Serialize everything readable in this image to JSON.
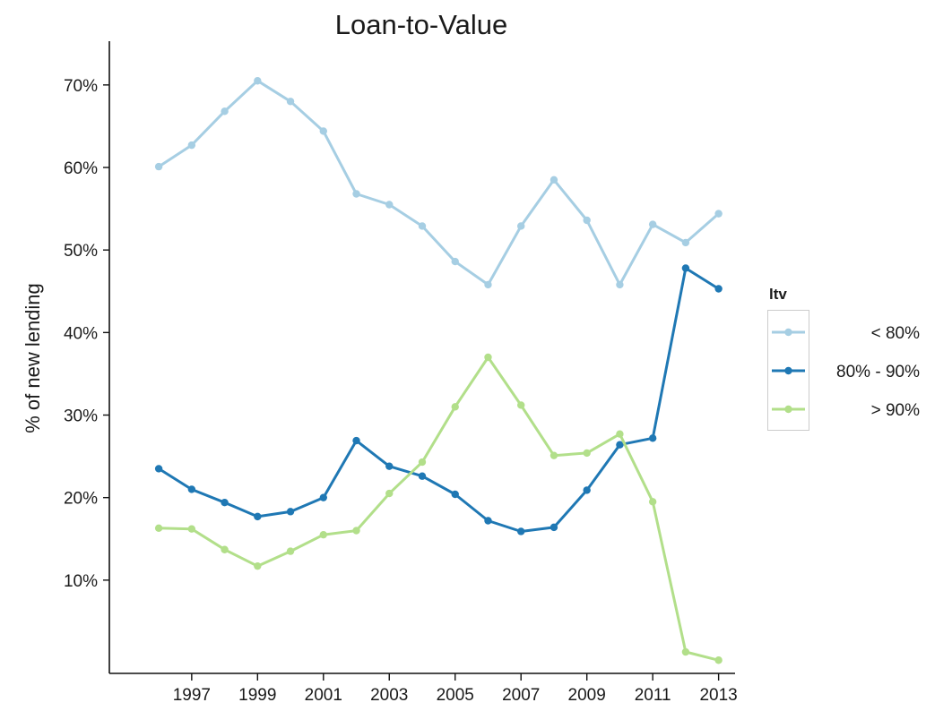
{
  "chart_data": {
    "type": "line",
    "title": "Loan-to-Value",
    "xlabel": "",
    "ylabel": "% of new lending",
    "x": [
      1996,
      1997,
      1998,
      1999,
      2000,
      2001,
      2002,
      2003,
      2004,
      2005,
      2006,
      2007,
      2008,
      2009,
      2010,
      2011,
      2012,
      2013
    ],
    "xlim": [
      1994.5,
      2013.5
    ],
    "ylim": [
      -0.013,
      0.753
    ],
    "x_ticks": [
      1997,
      1999,
      2001,
      2003,
      2005,
      2007,
      2009,
      2011,
      2013
    ],
    "x_tick_labels": [
      "1997",
      "1999",
      "2001",
      "2003",
      "2005",
      "2007",
      "2009",
      "2011",
      "2013"
    ],
    "y_ticks": [
      0.1,
      0.2,
      0.3,
      0.4,
      0.5,
      0.6,
      0.7
    ],
    "y_tick_labels": [
      "10%",
      "20%",
      "30%",
      "40%",
      "50%",
      "60%",
      "70%"
    ],
    "grid": false,
    "legend": {
      "title": "ltv",
      "position": "right"
    },
    "series": [
      {
        "name": "< 80%",
        "color": "#a6cee3",
        "values": [
          0.601,
          0.627,
          0.668,
          0.705,
          0.68,
          0.644,
          0.568,
          0.555,
          0.529,
          0.486,
          0.458,
          0.529,
          0.585,
          0.536,
          0.458,
          0.531,
          0.509,
          0.544
        ]
      },
      {
        "name": "80% - 90%",
        "color": "#1f78b4",
        "values": [
          0.235,
          0.21,
          0.194,
          0.177,
          0.183,
          0.2,
          0.269,
          0.238,
          0.226,
          0.204,
          0.172,
          0.159,
          0.164,
          0.209,
          0.264,
          0.272,
          0.478,
          0.453
        ]
      },
      {
        "name": "> 90%",
        "color": "#b2df8a",
        "values": [
          0.163,
          0.162,
          0.137,
          0.117,
          0.135,
          0.155,
          0.16,
          0.205,
          0.243,
          0.31,
          0.37,
          0.312,
          0.251,
          0.254,
          0.277,
          0.195,
          0.013,
          0.003
        ]
      }
    ]
  }
}
